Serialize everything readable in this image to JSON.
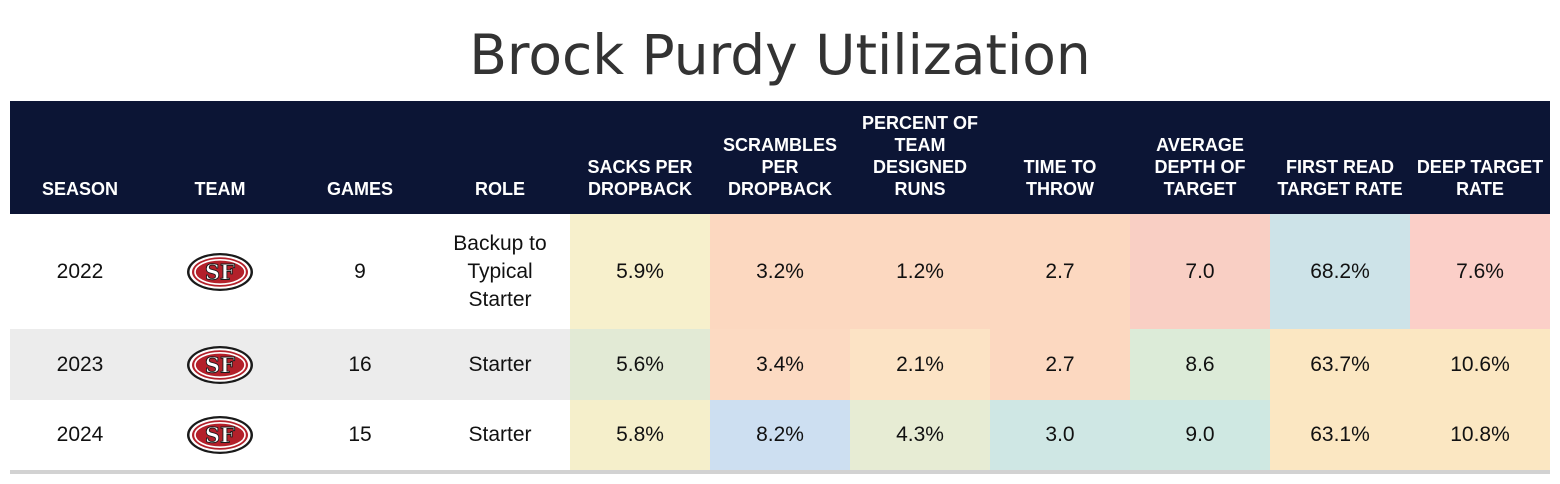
{
  "title": "Brock Purdy Utilization",
  "columns": [
    "SEASON",
    "TEAM",
    "GAMES",
    "ROLE",
    "SACKS PER DROPBACK",
    "SCRAMBLES PER DROPBACK",
    "PERCENT OF TEAM DESIGNED RUNS",
    "TIME TO THROW",
    "AVERAGE DEPTH OF TARGET",
    "FIRST READ TARGET RATE",
    "DEEP TARGET RATE"
  ],
  "team_logo_icon": "49ers-sf-logo-icon",
  "header_bg": "#0c1535",
  "rows": [
    {
      "season": "2022",
      "games": "9",
      "role": "Backup to Typical Starter",
      "stats": [
        "5.9%",
        "3.2%",
        "1.2%",
        "2.7",
        "7.0",
        "68.2%",
        "7.6%"
      ],
      "colors": [
        "#f7f0cc",
        "#fcd8c0",
        "#fcd8c0",
        "#fcd8c0",
        "#f9cfc4",
        "#cde3e8",
        "#fbcfc8"
      ]
    },
    {
      "season": "2023",
      "games": "16",
      "role": "Starter",
      "stats": [
        "5.6%",
        "3.4%",
        "2.1%",
        "2.7",
        "8.6",
        "63.7%",
        "10.6%"
      ],
      "colors": [
        "#e2ead5",
        "#fcdac2",
        "#fce3c5",
        "#fcd8c0",
        "#dcebd8",
        "#fbe7c2",
        "#fbe7c2"
      ]
    },
    {
      "season": "2024",
      "games": "15",
      "role": "Starter",
      "stats": [
        "5.8%",
        "8.2%",
        "4.3%",
        "3.0",
        "9.0",
        "63.1%",
        "10.8%"
      ],
      "colors": [
        "#f5efcb",
        "#cddff1",
        "#e7ecd4",
        "#cfe7e4",
        "#cfe8e2",
        "#fbe7c2",
        "#fbe7c2"
      ]
    }
  ]
}
